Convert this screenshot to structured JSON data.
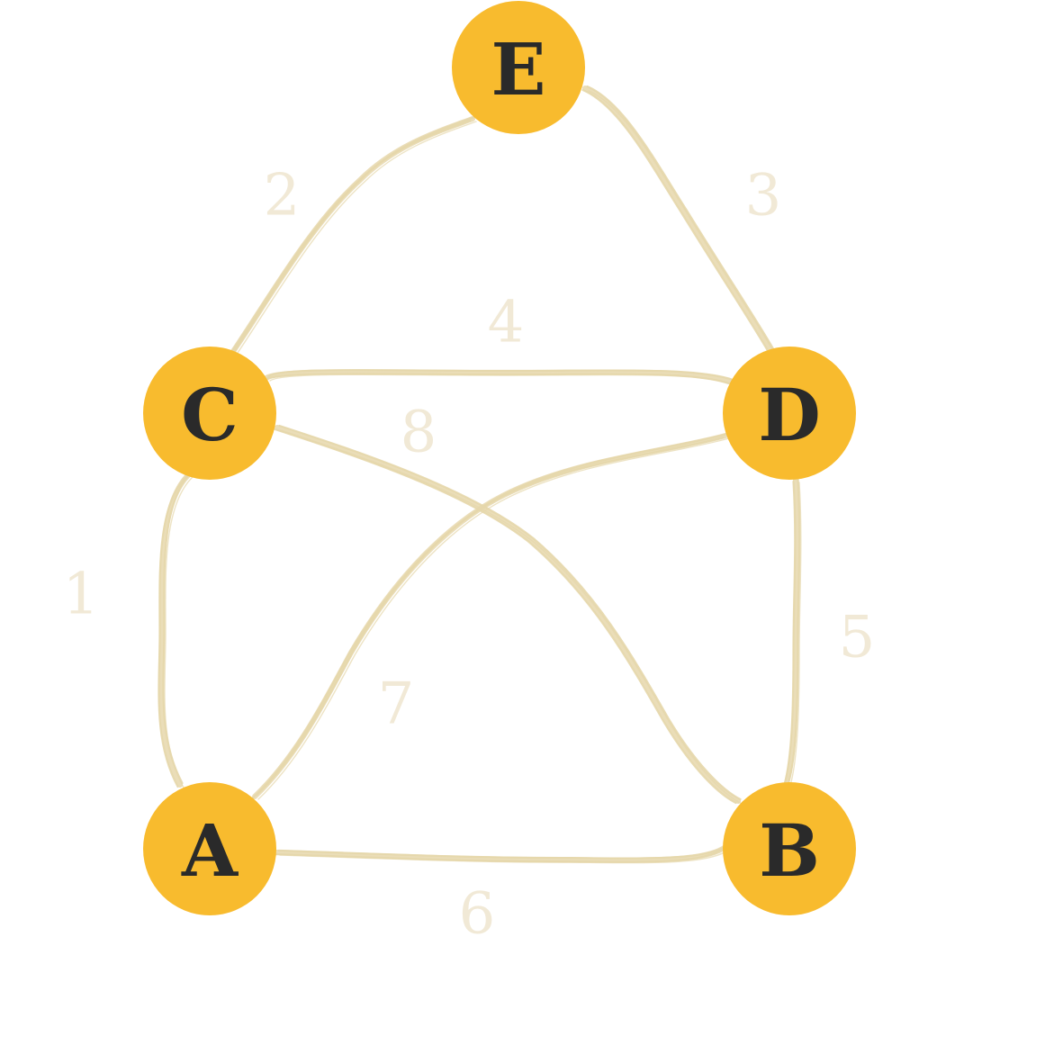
{
  "colors": {
    "node_fill": "#f8bb2e",
    "node_text": "#2a2a2a",
    "edge_stroke": "#e6d7ab",
    "edge_label": "#f1e9d6",
    "background": "#ffffff"
  },
  "nodes": [
    {
      "id": "A",
      "label": "A"
    },
    {
      "id": "B",
      "label": "B"
    },
    {
      "id": "C",
      "label": "C"
    },
    {
      "id": "D",
      "label": "D"
    },
    {
      "id": "E",
      "label": "E"
    }
  ],
  "edges": [
    {
      "from": "A",
      "to": "C",
      "label": "1"
    },
    {
      "from": "C",
      "to": "E",
      "label": "2"
    },
    {
      "from": "E",
      "to": "D",
      "label": "3"
    },
    {
      "from": "C",
      "to": "D",
      "label": "4"
    },
    {
      "from": "D",
      "to": "B",
      "label": "5"
    },
    {
      "from": "A",
      "to": "B",
      "label": "6"
    },
    {
      "from": "A",
      "to": "D",
      "label": "7"
    },
    {
      "from": "C",
      "to": "B",
      "label": "8"
    }
  ]
}
